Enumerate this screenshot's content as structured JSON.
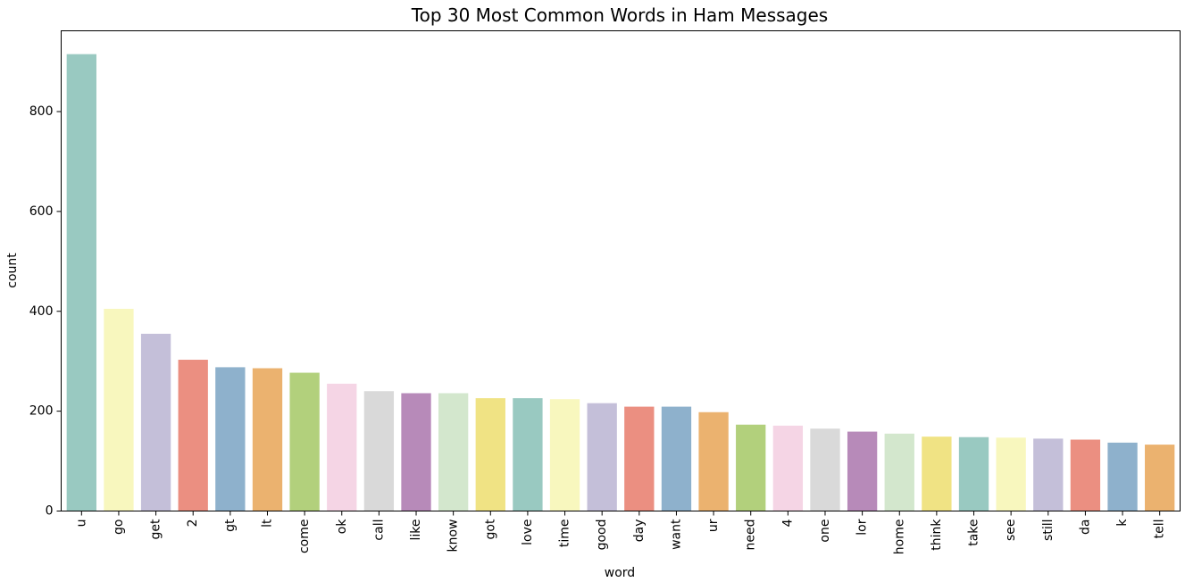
{
  "chart_data": {
    "type": "bar",
    "title": "Top 30 Most Common Words in Ham Messages",
    "xlabel": "word",
    "ylabel": "count",
    "ylim": [
      0,
      960
    ],
    "yticks": [
      0,
      200,
      400,
      600,
      800
    ],
    "grid": false,
    "legend": "none",
    "categories": [
      "u",
      "go",
      "get",
      "2",
      "gt",
      "lt",
      "come",
      "ok",
      "call",
      "like",
      "know",
      "got",
      "love",
      "time",
      "good",
      "day",
      "want",
      "ur",
      "need",
      "4",
      "one",
      "lor",
      "home",
      "think",
      "take",
      "see",
      "still",
      "da",
      "k",
      "tell"
    ],
    "values": [
      915,
      405,
      355,
      303,
      288,
      286,
      277,
      255,
      240,
      236,
      236,
      226,
      226,
      224,
      216,
      209,
      209,
      198,
      173,
      171,
      165,
      159,
      155,
      149,
      148,
      147,
      145,
      143,
      137,
      133
    ],
    "colors": [
      "#99c9c1",
      "#f8f7be",
      "#c4bfd9",
      "#eb8f81",
      "#8eb1cc",
      "#ebb26f",
      "#b2d07c",
      "#f5d5e5",
      "#d9d9d9",
      "#b78ab9",
      "#d3e7cd",
      "#f0e384"
    ]
  }
}
